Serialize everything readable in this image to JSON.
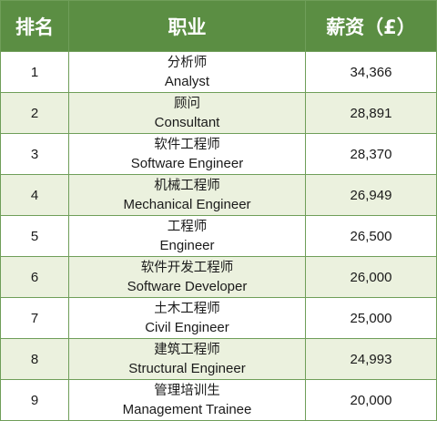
{
  "table": {
    "header": {
      "rank": "排名",
      "job": "职业",
      "salary": "薪资（£）"
    },
    "rows": [
      {
        "rank": "1",
        "job_cn": "分析师",
        "job_en": "Analyst",
        "salary": "34,366"
      },
      {
        "rank": "2",
        "job_cn": "顾问",
        "job_en": "Consultant",
        "salary": "28,891"
      },
      {
        "rank": "3",
        "job_cn": "软件工程师",
        "job_en": "Software Engineer",
        "salary": "28,370"
      },
      {
        "rank": "4",
        "job_cn": "机械工程师",
        "job_en": "Mechanical Engineer",
        "salary": "26,949"
      },
      {
        "rank": "5",
        "job_cn": "工程师",
        "job_en": "Engineer",
        "salary": "26,500"
      },
      {
        "rank": "6",
        "job_cn": "软件开发工程师",
        "job_en": "Software Developer",
        "salary": "26,000"
      },
      {
        "rank": "7",
        "job_cn": "土木工程师",
        "job_en": "Civil Engineer",
        "salary": "25,000"
      },
      {
        "rank": "8",
        "job_cn": "建筑工程师",
        "job_en": "Structural Engineer",
        "salary": "24,993"
      },
      {
        "rank": "9",
        "job_cn": "管理培训生",
        "job_en": "Management Trainee",
        "salary": "20,000"
      }
    ]
  },
  "colors": {
    "header_bg": "#5b8e43",
    "alt_row_bg": "#ebf1de",
    "border": "#6f9e59"
  }
}
